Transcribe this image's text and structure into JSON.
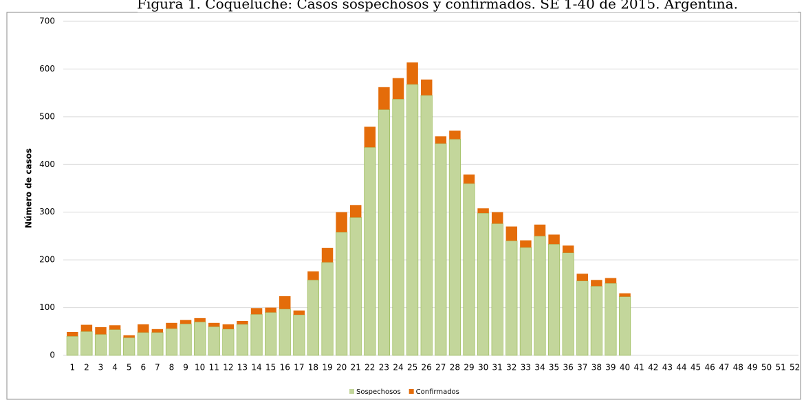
{
  "chart_data": {
    "type": "stacked_bar",
    "title": "Figura 1. Coqueluche: Casos sospechosos y confirmados. SE 1-40 de 2015. Argentina.",
    "y_label": "Número de casos",
    "categories": [
      "1",
      "2",
      "3",
      "4",
      "5",
      "6",
      "7",
      "8",
      "9",
      "10",
      "11",
      "12",
      "13",
      "14",
      "15",
      "16",
      "17",
      "18",
      "19",
      "20",
      "21",
      "22",
      "23",
      "24",
      "25",
      "26",
      "27",
      "28",
      "29",
      "30",
      "31",
      "32",
      "33",
      "34",
      "35",
      "36",
      "37",
      "38",
      "39",
      "40",
      "41",
      "42",
      "43",
      "44",
      "45",
      "46",
      "47",
      "48",
      "49",
      "50",
      "51",
      "52"
    ],
    "series": [
      {
        "name": "Sospechosos",
        "color": "#c3d69b",
        "values": [
          40,
          50,
          44,
          54,
          37,
          48,
          48,
          56,
          66,
          70,
          60,
          55,
          65,
          86,
          90,
          97,
          85,
          158,
          195,
          258,
          289,
          436,
          515,
          537,
          568,
          545,
          444,
          453,
          360,
          298,
          276,
          240,
          226,
          250,
          233,
          215,
          156,
          145,
          151,
          123,
          null,
          null,
          null,
          null,
          null,
          null,
          null,
          null,
          null,
          null,
          null,
          null
        ]
      },
      {
        "name": "Confirmados",
        "color": "#e46c0a",
        "values": [
          9,
          14,
          15,
          9,
          5,
          17,
          7,
          12,
          8,
          8,
          8,
          10,
          7,
          13,
          10,
          27,
          9,
          18,
          30,
          42,
          26,
          43,
          47,
          44,
          46,
          33,
          15,
          18,
          19,
          10,
          24,
          30,
          15,
          24,
          20,
          15,
          15,
          13,
          11,
          7,
          null,
          null,
          null,
          null,
          null,
          null,
          null,
          null,
          null,
          null,
          null,
          null
        ]
      }
    ],
    "ylim": [
      0,
      700
    ],
    "yticks": [
      0,
      100,
      200,
      300,
      400,
      500,
      600,
      700
    ],
    "grid": true,
    "legend": "bottom"
  }
}
